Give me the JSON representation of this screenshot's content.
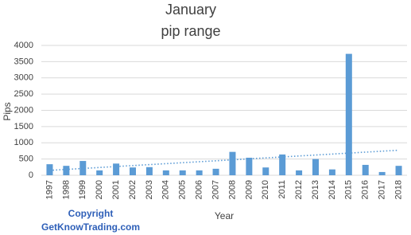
{
  "chart_data": {
    "type": "bar",
    "title": "January",
    "subtitle": "pip range",
    "x_label": "Year",
    "y_label": "Pips",
    "annotations": [
      "Copyright",
      "GetKnowTrading.com"
    ],
    "categories": [
      "1997",
      "1998",
      "1999",
      "2000",
      "2001",
      "2002",
      "2003",
      "2004",
      "2005",
      "2006",
      "2007",
      "2008",
      "2009",
      "2010",
      "2011",
      "2012",
      "2013",
      "2014",
      "2015",
      "2016",
      "2017",
      "2018"
    ],
    "values": [
      340,
      290,
      440,
      150,
      360,
      240,
      250,
      150,
      150,
      150,
      200,
      720,
      540,
      240,
      640,
      150,
      500,
      180,
      3740,
      320,
      100,
      290
    ],
    "color": "#5b9bd5",
    "trendline": "linear",
    "ylim": [
      0,
      4000
    ],
    "yticks": [
      0,
      500,
      1000,
      1500,
      2000,
      2500,
      3000,
      3500,
      4000
    ],
    "grid": true
  }
}
